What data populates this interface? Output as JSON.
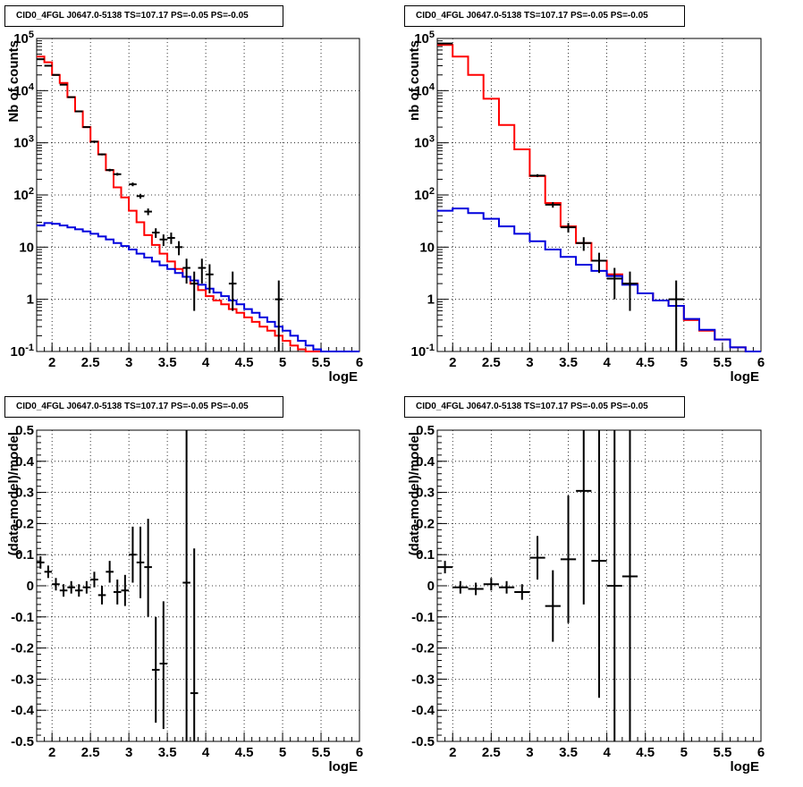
{
  "chart_data": [
    {
      "type": "line",
      "panel": "top-left",
      "title": "CID0_4FGL J0647.0-5138 TS=107.17 PS=-0.05 PS=-0.05",
      "xlabel": "logE",
      "ylabel": "Nb of counts",
      "xlim": [
        1.8,
        6.0
      ],
      "ylim": [
        0.1,
        100000
      ],
      "yscale": "log",
      "grid": true,
      "xticks": [
        "2",
        "2.5",
        "3",
        "3.5",
        "4",
        "4.5",
        "5",
        "5.5",
        "6"
      ],
      "yticks": [
        "10^-1",
        "1",
        "10",
        "10^2",
        "10^3",
        "10^4",
        "10^5"
      ],
      "bin_edges": [
        1.8,
        1.9,
        2.0,
        2.1,
        2.2,
        2.3,
        2.4,
        2.5,
        2.6,
        2.7,
        2.8,
        2.9,
        3.0,
        3.1,
        3.2,
        3.3,
        3.4,
        3.5,
        3.6,
        3.7,
        3.8,
        3.9,
        4.0,
        4.1,
        4.2,
        4.3,
        4.4,
        4.5,
        4.6,
        4.7,
        4.8,
        4.9,
        5.0,
        5.1,
        5.2,
        5.3,
        5.4,
        5.5,
        5.6,
        5.7,
        5.8,
        5.9,
        6.0
      ],
      "series": [
        {
          "color": "#ff0000",
          "style": "step",
          "values": [
            45000,
            35000,
            20000,
            14000,
            7500,
            4000,
            2000,
            1050,
            600,
            300,
            140,
            90,
            50,
            30,
            17,
            11,
            7.5,
            5.3,
            3.8,
            2.7,
            2.0,
            1.5,
            1.15,
            0.95,
            0.8,
            0.65,
            0.55,
            0.45,
            0.37,
            0.3,
            0.25,
            0.2,
            0.16,
            0.13,
            0.11,
            0.1,
            0.1,
            0.1,
            0.1,
            0.1,
            0.1,
            0.1
          ]
        },
        {
          "color": "#0000dd",
          "style": "step",
          "values": [
            26,
            29,
            28,
            26,
            24,
            22,
            20,
            18,
            16,
            14,
            12,
            10.5,
            9,
            7.5,
            6.3,
            5.3,
            4.5,
            3.8,
            3.2,
            2.7,
            2.3,
            1.9,
            1.6,
            1.35,
            1.15,
            0.95,
            0.8,
            0.65,
            0.55,
            0.45,
            0.37,
            0.3,
            0.25,
            0.2,
            0.16,
            0.13,
            0.11,
            0.1,
            0.1,
            0.1,
            0.1,
            0.1
          ]
        }
      ],
      "points": [
        {
          "x": 1.85,
          "y": 40000,
          "xerr": 0.05,
          "ylo": 39000,
          "yhi": 41000
        },
        {
          "x": 1.95,
          "y": 30000,
          "xerr": 0.05,
          "ylo": 29000,
          "yhi": 31000
        },
        {
          "x": 2.05,
          "y": 20000,
          "xerr": 0.05,
          "ylo": 19500,
          "yhi": 20500
        },
        {
          "x": 2.15,
          "y": 13000,
          "xerr": 0.05,
          "ylo": 12700,
          "yhi": 13300
        },
        {
          "x": 2.25,
          "y": 7500,
          "xerr": 0.05,
          "ylo": 7300,
          "yhi": 7700
        },
        {
          "x": 2.35,
          "y": 4000,
          "xerr": 0.05,
          "ylo": 3900,
          "yhi": 4100
        },
        {
          "x": 2.45,
          "y": 2000,
          "xerr": 0.05,
          "ylo": 1950,
          "yhi": 2050
        },
        {
          "x": 2.55,
          "y": 1050,
          "xerr": 0.05,
          "ylo": 1000,
          "yhi": 1100
        },
        {
          "x": 2.65,
          "y": 600,
          "xerr": 0.05,
          "ylo": 575,
          "yhi": 625
        },
        {
          "x": 2.75,
          "y": 300,
          "xerr": 0.05,
          "ylo": 283,
          "yhi": 317
        },
        {
          "x": 2.85,
          "y": 250,
          "xerr": 0.05,
          "ylo": 235,
          "yhi": 265
        },
        {
          "x": 3.05,
          "y": 160,
          "xerr": 0.05,
          "ylo": 147,
          "yhi": 173
        },
        {
          "x": 3.15,
          "y": 95,
          "xerr": 0.05,
          "ylo": 85,
          "yhi": 105
        },
        {
          "x": 3.25,
          "y": 48,
          "xerr": 0.05,
          "ylo": 41,
          "yhi": 55
        },
        {
          "x": 3.35,
          "y": 19,
          "xerr": 0.05,
          "ylo": 15,
          "yhi": 23
        },
        {
          "x": 3.45,
          "y": 14,
          "xerr": 0.05,
          "ylo": 10.5,
          "yhi": 17.5
        },
        {
          "x": 3.55,
          "y": 15,
          "xerr": 0.05,
          "ylo": 11.5,
          "yhi": 19
        },
        {
          "x": 3.65,
          "y": 10,
          "xerr": 0.05,
          "ylo": 7,
          "yhi": 13
        },
        {
          "x": 3.75,
          "y": 4,
          "xerr": 0.05,
          "ylo": 2,
          "yhi": 6
        },
        {
          "x": 3.85,
          "y": 2,
          "xerr": 0.05,
          "ylo": 0.6,
          "yhi": 3.4
        },
        {
          "x": 3.95,
          "y": 4,
          "xerr": 0.05,
          "ylo": 2,
          "yhi": 6
        },
        {
          "x": 4.05,
          "y": 3,
          "xerr": 0.05,
          "ylo": 1.3,
          "yhi": 4.7
        },
        {
          "x": 4.35,
          "y": 2,
          "xerr": 0.05,
          "ylo": 0.6,
          "yhi": 3.4
        },
        {
          "x": 4.95,
          "y": 1,
          "xerr": 0.05,
          "ylo": 0.1,
          "yhi": 2.3
        }
      ]
    },
    {
      "type": "line",
      "panel": "top-right",
      "title": "CID0_4FGL J0647.0-5138 TS=107.17 PS=-0.05 PS=-0.05",
      "xlabel": "logE",
      "ylabel": "nb of counts",
      "xlim": [
        1.8,
        6.0
      ],
      "ylim": [
        0.1,
        100000
      ],
      "yscale": "log",
      "grid": true,
      "xticks": [
        "2",
        "2.5",
        "3",
        "3.5",
        "4",
        "4.5",
        "5",
        "5.5",
        "6"
      ],
      "yticks": [
        "10^-1",
        "1",
        "10",
        "10^2",
        "10^3",
        "10^4",
        "10^5"
      ],
      "bin_edges": [
        1.8,
        2.0,
        2.2,
        2.4,
        2.6,
        2.8,
        3.0,
        3.2,
        3.4,
        3.6,
        3.8,
        4.0,
        4.2,
        4.4,
        4.6,
        4.8,
        5.0,
        5.2,
        5.4,
        5.6,
        5.8,
        6.0
      ],
      "series": [
        {
          "color": "#ff0000",
          "style": "step",
          "values": [
            75000,
            45000,
            20000,
            7000,
            2200,
            750,
            230,
            70,
            25,
            12,
            5.5,
            3,
            2,
            1.3,
            0.95,
            0.75,
            0.4,
            0.25,
            0.17,
            0.12,
            0.1
          ]
        },
        {
          "color": "#0000dd",
          "style": "step",
          "values": [
            50,
            55,
            45,
            35,
            25,
            18,
            13,
            9,
            6.5,
            4.6,
            3.5,
            2.8,
            1.9,
            1.3,
            0.95,
            0.75,
            0.42,
            0.26,
            0.17,
            0.12,
            0.1
          ]
        }
      ],
      "points": [
        {
          "x": 1.9,
          "y": 80000,
          "xerr": 0.1,
          "ylo": 79500,
          "yhi": 80500
        },
        {
          "x": 3.1,
          "y": 235,
          "xerr": 0.1,
          "ylo": 220,
          "yhi": 250
        },
        {
          "x": 3.3,
          "y": 65,
          "xerr": 0.1,
          "ylo": 57,
          "yhi": 73
        },
        {
          "x": 3.5,
          "y": 24,
          "xerr": 0.1,
          "ylo": 19,
          "yhi": 29
        },
        {
          "x": 3.7,
          "y": 12,
          "xerr": 0.1,
          "ylo": 8.5,
          "yhi": 15.5
        },
        {
          "x": 3.9,
          "y": 5.5,
          "xerr": 0.1,
          "ylo": 3.2,
          "yhi": 7.8
        },
        {
          "x": 4.1,
          "y": 2.5,
          "xerr": 0.1,
          "ylo": 1,
          "yhi": 4
        },
        {
          "x": 4.3,
          "y": 2,
          "xerr": 0.1,
          "ylo": 0.6,
          "yhi": 3.4
        },
        {
          "x": 4.9,
          "y": 1,
          "xerr": 0.1,
          "ylo": 0.1,
          "yhi": 2.3
        }
      ]
    },
    {
      "type": "scatter",
      "panel": "bottom-left",
      "title": "CID0_4FGL J0647.0-5138 TS=107.17 PS=-0.05 PS=-0.05",
      "xlabel": "logE",
      "ylabel": "(data-model)/model",
      "xlim": [
        1.8,
        6.0
      ],
      "ylim": [
        -0.5,
        0.5
      ],
      "yscale": "linear",
      "grid": true,
      "xticks": [
        "2",
        "2.5",
        "3",
        "3.5",
        "4",
        "4.5",
        "5",
        "5.5",
        "6"
      ],
      "yticks": [
        "-0.5",
        "-0.4",
        "-0.3",
        "-0.2",
        "-0.1",
        "0",
        "0.1",
        "0.2",
        "0.3",
        "0.4",
        "0.5"
      ],
      "points": [
        {
          "x": 1.85,
          "y": 0.075,
          "xerr": 0.05,
          "ylo": 0.055,
          "yhi": 0.095
        },
        {
          "x": 1.95,
          "y": 0.045,
          "xerr": 0.05,
          "ylo": 0.025,
          "yhi": 0.065
        },
        {
          "x": 2.05,
          "y": 0.005,
          "xerr": 0.05,
          "ylo": -0.015,
          "yhi": 0.025
        },
        {
          "x": 2.15,
          "y": -0.015,
          "xerr": 0.05,
          "ylo": -0.035,
          "yhi": 0.005
        },
        {
          "x": 2.25,
          "y": -0.005,
          "xerr": 0.05,
          "ylo": -0.025,
          "yhi": 0.015
        },
        {
          "x": 2.35,
          "y": -0.015,
          "xerr": 0.05,
          "ylo": -0.035,
          "yhi": 0.005
        },
        {
          "x": 2.45,
          "y": -0.005,
          "xerr": 0.05,
          "ylo": -0.025,
          "yhi": 0.015
        },
        {
          "x": 2.55,
          "y": 0.02,
          "xerr": 0.05,
          "ylo": -0.005,
          "yhi": 0.045
        },
        {
          "x": 2.65,
          "y": -0.03,
          "xerr": 0.05,
          "ylo": -0.06,
          "yhi": 0.0
        },
        {
          "x": 2.75,
          "y": 0.045,
          "xerr": 0.05,
          "ylo": 0.01,
          "yhi": 0.08
        },
        {
          "x": 2.85,
          "y": -0.02,
          "xerr": 0.05,
          "ylo": -0.06,
          "yhi": 0.02
        },
        {
          "x": 2.95,
          "y": -0.015,
          "xerr": 0.05,
          "ylo": -0.065,
          "yhi": 0.035
        },
        {
          "x": 3.05,
          "y": 0.1,
          "xerr": 0.05,
          "ylo": 0.01,
          "yhi": 0.19
        },
        {
          "x": 3.15,
          "y": 0.075,
          "xerr": 0.05,
          "ylo": -0.04,
          "yhi": 0.19
        },
        {
          "x": 3.25,
          "y": 0.06,
          "xerr": 0.05,
          "ylo": -0.1,
          "yhi": 0.215
        },
        {
          "x": 3.35,
          "y": -0.27,
          "xerr": 0.05,
          "ylo": -0.44,
          "yhi": -0.1
        },
        {
          "x": 3.45,
          "y": -0.25,
          "xerr": 0.05,
          "ylo": -0.46,
          "yhi": -0.05
        },
        {
          "x": 3.75,
          "y": 0.01,
          "xerr": 0.05,
          "ylo": -0.5,
          "yhi": 0.5
        },
        {
          "x": 3.85,
          "y": -0.345,
          "xerr": 0.05,
          "ylo": -0.5,
          "yhi": 0.12
        }
      ]
    },
    {
      "type": "scatter",
      "panel": "bottom-right",
      "title": "CID0_4FGL J0647.0-5138 TS=107.17 PS=-0.05 PS=-0.05",
      "xlabel": "logE",
      "ylabel": "(data-model)/model",
      "xlim": [
        1.8,
        6.0
      ],
      "ylim": [
        -0.5,
        0.5
      ],
      "yscale": "linear",
      "grid": true,
      "xticks": [
        "2",
        "2.5",
        "3",
        "3.5",
        "4",
        "4.5",
        "5",
        "5.5",
        "6"
      ],
      "yticks": [
        "-0.5",
        "-0.4",
        "-0.3",
        "-0.2",
        "-0.1",
        "0",
        "0.1",
        "0.2",
        "0.3",
        "0.4",
        "0.5"
      ],
      "points": [
        {
          "x": 1.9,
          "y": 0.06,
          "xerr": 0.1,
          "ylo": 0.04,
          "yhi": 0.08
        },
        {
          "x": 2.1,
          "y": -0.005,
          "xerr": 0.1,
          "ylo": -0.025,
          "yhi": 0.015
        },
        {
          "x": 2.3,
          "y": -0.01,
          "xerr": 0.1,
          "ylo": -0.03,
          "yhi": 0.01
        },
        {
          "x": 2.5,
          "y": 0.005,
          "xerr": 0.1,
          "ylo": -0.015,
          "yhi": 0.025
        },
        {
          "x": 2.7,
          "y": -0.005,
          "xerr": 0.1,
          "ylo": -0.025,
          "yhi": 0.015
        },
        {
          "x": 2.9,
          "y": -0.02,
          "xerr": 0.1,
          "ylo": -0.045,
          "yhi": 0.005
        },
        {
          "x": 3.1,
          "y": 0.09,
          "xerr": 0.1,
          "ylo": 0.02,
          "yhi": 0.16
        },
        {
          "x": 3.3,
          "y": -0.065,
          "xerr": 0.1,
          "ylo": -0.18,
          "yhi": 0.05
        },
        {
          "x": 3.5,
          "y": 0.085,
          "xerr": 0.1,
          "ylo": -0.12,
          "yhi": 0.29
        },
        {
          "x": 3.7,
          "y": 0.305,
          "xerr": 0.1,
          "ylo": -0.06,
          "yhi": 0.5
        },
        {
          "x": 3.9,
          "y": 0.08,
          "xerr": 0.1,
          "ylo": -0.36,
          "yhi": 0.5
        },
        {
          "x": 4.1,
          "y": 0.0,
          "xerr": 0.1,
          "ylo": -0.5,
          "yhi": 0.5
        },
        {
          "x": 4.3,
          "y": 0.03,
          "xerr": 0.1,
          "ylo": -0.5,
          "yhi": 0.5
        }
      ]
    }
  ]
}
